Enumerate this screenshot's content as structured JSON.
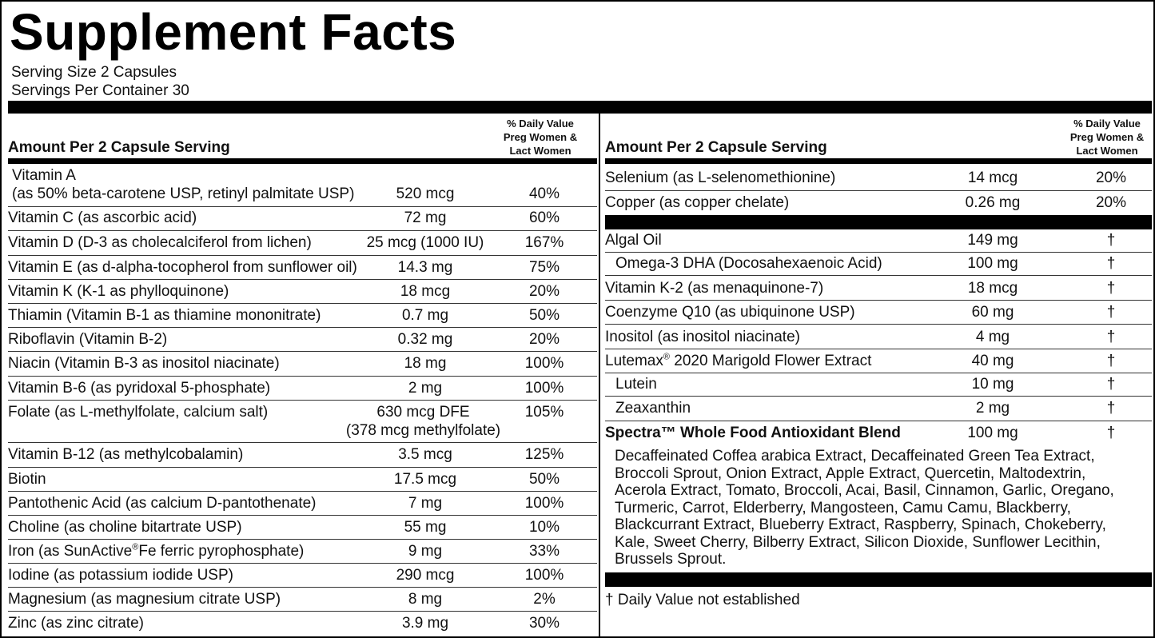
{
  "title": "Supplement Facts",
  "serving_size": "Serving Size 2 Capsules",
  "servings_per_container": "Servings Per Container 30",
  "header": {
    "amount": "Amount Per 2 Capsule Serving",
    "dv_line1": "% Daily Value",
    "dv_line2": "Preg Women &",
    "dv_line3": "Lact Women"
  },
  "left_rows": [
    {
      "name": "Vitamin A",
      "name2": " (as 50% beta-carotene USP, retinyl palmitate USP)",
      "amount": "520 mcg",
      "dv": "40%"
    },
    {
      "name": "Vitamin C (as ascorbic acid)",
      "amount": "72 mg",
      "dv": "60%"
    },
    {
      "name": "Vitamin D (D-3 as cholecalciferol from lichen)",
      "amount": "25 mcg (1000 IU)",
      "dv": "167%"
    },
    {
      "name": "Vitamin E (as d-alpha-tocopherol from sunflower oil)",
      "amount": "14.3 mg",
      "dv": "75%"
    },
    {
      "name": "Vitamin K (K-1 as phylloquinone)",
      "amount": "18 mcg",
      "dv": "20%"
    },
    {
      "name": "Thiamin (Vitamin B-1 as thiamine mononitrate)",
      "amount": "0.7 mg",
      "dv": "50%"
    },
    {
      "name": "Riboflavin (Vitamin B-2)",
      "amount": "0.32 mg",
      "dv": "20%"
    },
    {
      "name": "Niacin (Vitamin B-3 as inositol niacinate)",
      "amount": "18 mg",
      "dv": "100%"
    },
    {
      "name": "Vitamin B-6 (as pyridoxal 5-phosphate)",
      "amount": "2 mg",
      "dv": "100%"
    },
    {
      "name": "Folate (as L-methylfolate, calcium salt)",
      "amount": "630 mcg DFE",
      "amount2": "(378 mcg methylfolate)",
      "dv": "105%"
    },
    {
      "name": "Vitamin B-12 (as methylcobalamin)",
      "amount": "3.5 mcg",
      "dv": "125%"
    },
    {
      "name": "Biotin",
      "amount": "17.5 mcg",
      "dv": "50%"
    },
    {
      "name": "Pantothenic Acid (as calcium D-pantothenate)",
      "amount": "7 mg",
      "dv": "100%"
    },
    {
      "name": "Choline (as choline bitartrate USP)",
      "amount": "55 mg",
      "dv": "10%"
    },
    {
      "name": "Iron (as SunActive",
      "name_sup": "®",
      "name_after": "Fe ferric pyrophosphate)",
      "amount": "9 mg",
      "dv": "33%"
    },
    {
      "name": "Iodine (as potassium iodide USP)",
      "amount": "290 mcg",
      "dv": "100%"
    },
    {
      "name": "Magnesium (as magnesium citrate USP)",
      "amount": "8 mg",
      "dv": "2%"
    },
    {
      "name": "Zinc (as zinc citrate)",
      "amount": "3.9 mg",
      "dv": "30%"
    }
  ],
  "right_rows_a": [
    {
      "name": "Selenium (as L-selenomethionine)",
      "amount": "14 mcg",
      "dv": "20%"
    },
    {
      "name": "Copper (as copper chelate)",
      "amount": "0.26 mg",
      "dv": "20%"
    }
  ],
  "right_rows_b": [
    {
      "name": "Algal Oil",
      "amount": "149 mg",
      "dv": "†"
    },
    {
      "name": "Omega-3 DHA (Docosahexaenoic Acid)",
      "amount": "100 mg",
      "dv": "†"
    },
    {
      "name": "Vitamin K-2 (as menaquinone-7)",
      "amount": "18 mcg",
      "dv": "†"
    },
    {
      "name": "Coenzyme Q10 (as ubiquinone USP)",
      "amount": "60 mg",
      "dv": "†"
    },
    {
      "name": "Inositol (as inositol niacinate)",
      "amount": "4 mg",
      "dv": "†"
    },
    {
      "name": "Lutemax",
      "name_sup": "®",
      "name_after": " 2020 Marigold Flower Extract",
      "amount": "40 mg",
      "dv": "†"
    },
    {
      "name": "Lutein",
      "amount": "10 mg",
      "dv": "†"
    },
    {
      "name": "Zeaxanthin",
      "amount": "2 mg",
      "dv": "†"
    }
  ],
  "spectra": {
    "name": "Spectra™ Whole Food Antioxidant Blend",
    "amount": "100 mg",
    "dv": "†",
    "lines": [
      "Decaffeinated Coffea arabica Extract, Decaffeinated Green Tea Extract,",
      "Broccoli Sprout, Onion Extract, Apple Extract, Quercetin, Maltodextrin,",
      "Acerola Extract, Tomato, Broccoli, Acai, Basil, Cinnamon, Garlic, Oregano,",
      "Turmeric, Carrot, Elderberry, Mangosteen, Camu Camu, Blackberry,",
      "Blackcurrant Extract, Blueberry Extract, Raspberry, Spinach, Chokeberry,",
      "Kale, Sweet Cherry, Bilberry Extract, Silicon Dioxide, Sunflower Lecithin,",
      "Brussels Sprout."
    ]
  },
  "footnote": "† Daily Value not established"
}
